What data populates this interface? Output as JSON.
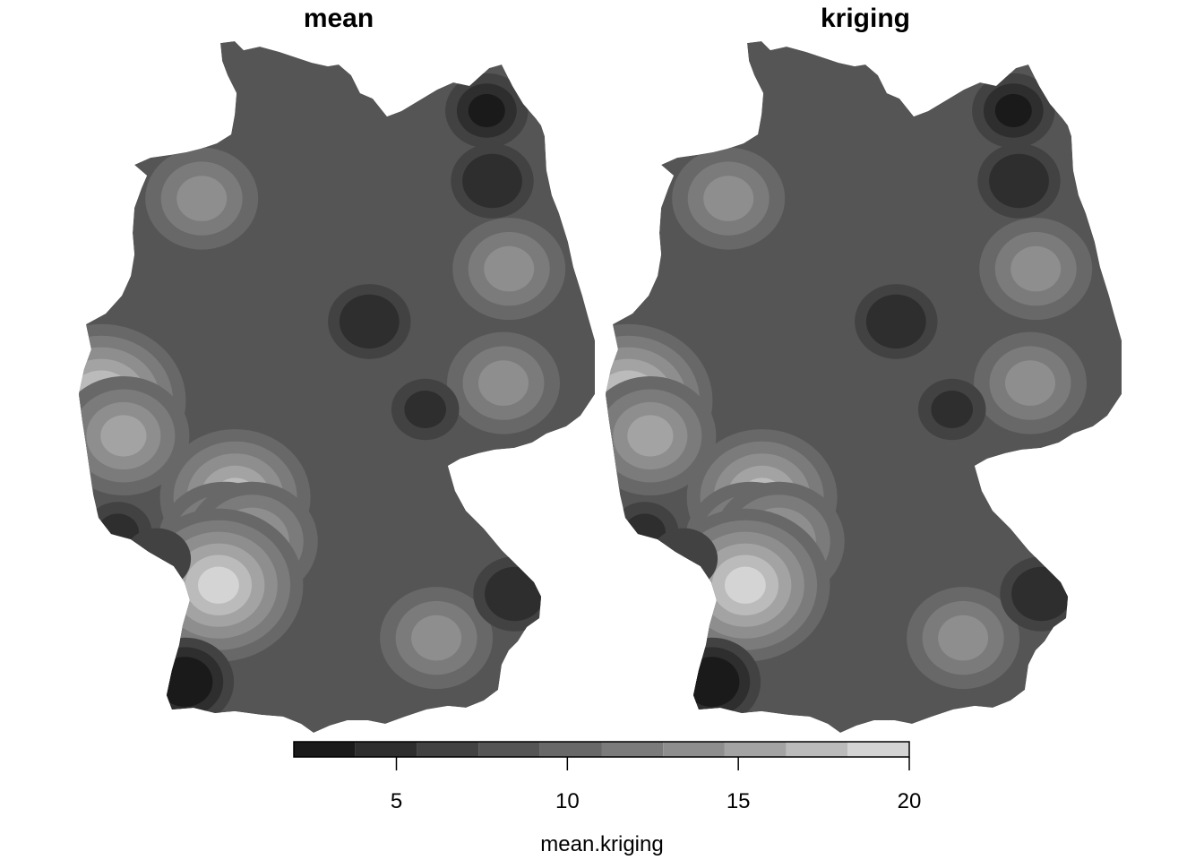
{
  "chart_data": {
    "type": "heatmap",
    "panels": [
      {
        "title": "mean",
        "hotspots": [
          {
            "lon": 6.2,
            "lat": 51.0,
            "value": 18
          },
          {
            "lon": 6.6,
            "lat": 50.6,
            "value": 16
          },
          {
            "lon": 8.6,
            "lat": 49.9,
            "value": 17
          },
          {
            "lon": 8.4,
            "lat": 49.4,
            "value": 15
          },
          {
            "lon": 8.9,
            "lat": 49.4,
            "value": 15
          },
          {
            "lon": 8.3,
            "lat": 48.9,
            "value": 19
          },
          {
            "lon": 8.0,
            "lat": 53.3,
            "value": 13
          },
          {
            "lon": 13.5,
            "lat": 52.5,
            "value": 14
          },
          {
            "lon": 13.4,
            "lat": 51.2,
            "value": 13
          },
          {
            "lon": 12.2,
            "lat": 48.3,
            "value": 13
          },
          {
            "lon": 11.0,
            "lat": 51.9,
            "value": 4
          },
          {
            "lon": 12.0,
            "lat": 50.9,
            "value": 5
          },
          {
            "lon": 13.2,
            "lat": 53.5,
            "value": 4
          },
          {
            "lon": 13.1,
            "lat": 54.3,
            "value": 3
          },
          {
            "lon": 7.7,
            "lat": 47.8,
            "value": 2
          },
          {
            "lon": 13.6,
            "lat": 48.8,
            "value": 4
          },
          {
            "lon": 6.5,
            "lat": 49.5,
            "value": 5
          },
          {
            "lon": 7.2,
            "lat": 49.2,
            "value": 6
          }
        ]
      },
      {
        "title": "kriging",
        "hotspots": [
          {
            "lon": 6.2,
            "lat": 51.0,
            "value": 18
          },
          {
            "lon": 6.6,
            "lat": 50.6,
            "value": 16
          },
          {
            "lon": 8.6,
            "lat": 49.9,
            "value": 17
          },
          {
            "lon": 8.4,
            "lat": 49.4,
            "value": 15
          },
          {
            "lon": 8.9,
            "lat": 49.4,
            "value": 15
          },
          {
            "lon": 8.3,
            "lat": 48.9,
            "value": 19
          },
          {
            "lon": 8.0,
            "lat": 53.3,
            "value": 13
          },
          {
            "lon": 13.5,
            "lat": 52.5,
            "value": 14
          },
          {
            "lon": 13.4,
            "lat": 51.2,
            "value": 13
          },
          {
            "lon": 12.2,
            "lat": 48.3,
            "value": 13
          },
          {
            "lon": 11.0,
            "lat": 51.9,
            "value": 4
          },
          {
            "lon": 12.0,
            "lat": 50.9,
            "value": 5
          },
          {
            "lon": 13.2,
            "lat": 53.5,
            "value": 4
          },
          {
            "lon": 13.1,
            "lat": 54.3,
            "value": 3
          },
          {
            "lon": 7.7,
            "lat": 47.8,
            "value": 2
          },
          {
            "lon": 13.6,
            "lat": 48.8,
            "value": 4
          },
          {
            "lon": 6.5,
            "lat": 49.5,
            "value": 5
          },
          {
            "lon": 7.2,
            "lat": 49.2,
            "value": 6
          }
        ]
      }
    ],
    "background_value": 8.5,
    "colorbar": {
      "label": "mean.kriging",
      "breaks": [
        2,
        3.8,
        5.6,
        7.4,
        9.2,
        11,
        12.8,
        14.6,
        16.4,
        18.2,
        20
      ],
      "ticks": [
        5,
        10,
        15,
        20
      ],
      "colors": [
        "#1a1a1a",
        "#2e2e2e",
        "#424242",
        "#555555",
        "#686868",
        "#7b7b7b",
        "#8e8e8e",
        "#a3a3a3",
        "#bbbbbb",
        "#d4d4d4"
      ],
      "placement": "bottom"
    },
    "xlim": [
      5.8,
      15.1
    ],
    "ylim": [
      47.2,
      55.1
    ]
  }
}
